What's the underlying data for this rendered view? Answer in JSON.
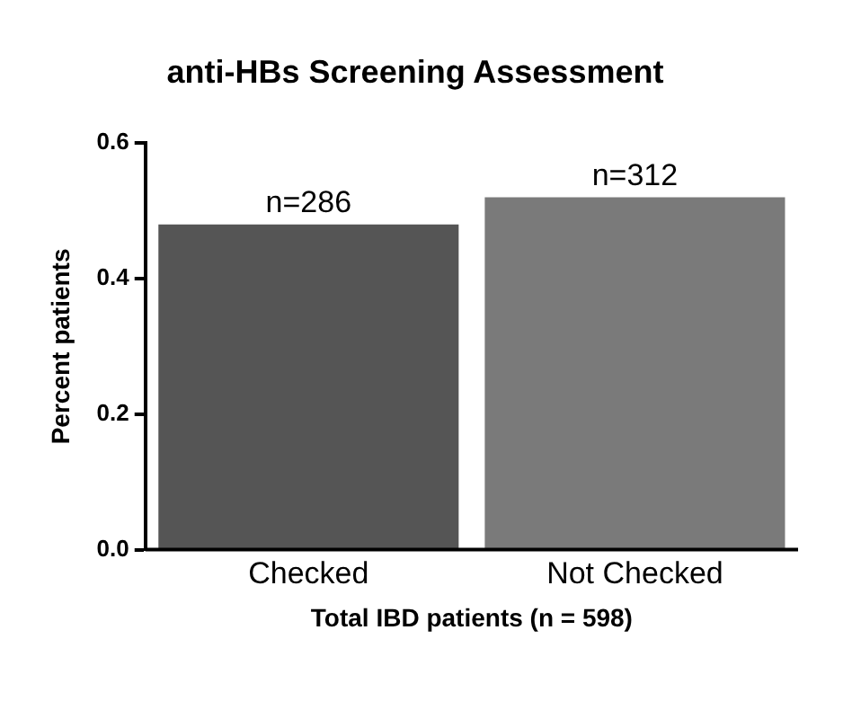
{
  "chart_data": {
    "type": "bar",
    "title": "anti-HBs Screening Assessment",
    "xlabel": "Total IBD patients (n = 598)",
    "ylabel": "Percent patients",
    "categories": [
      "Checked",
      "Not Checked"
    ],
    "values": [
      0.48,
      0.52
    ],
    "colors": [
      "#555555",
      "#7a7a7a"
    ],
    "annotations": [
      {
        "text": "n=286",
        "x": "Checked",
        "y": 0.48
      },
      {
        "text": "n=312",
        "x": "Not Checked",
        "y": 0.52
      }
    ],
    "ylim": [
      0,
      0.6
    ],
    "yticks": [
      {
        "value": 0,
        "label": "0.0"
      },
      {
        "value": 0.2,
        "label": "0.2"
      },
      {
        "value": 0.4,
        "label": "0.4"
      },
      {
        "value": 0.6,
        "label": "0.6"
      }
    ],
    "grid": false,
    "legend": false
  }
}
